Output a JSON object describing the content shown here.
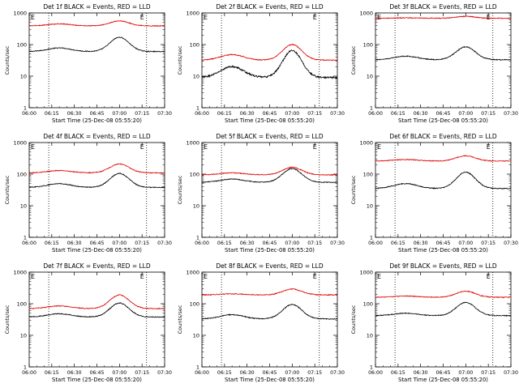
{
  "colors": {
    "events": "#000000",
    "lld": "#e00000",
    "axis": "#000000",
    "background": "#ffffff"
  },
  "x_axis": {
    "label": "Start Time (25-Dec-08 05:55:20)",
    "ticks": [
      "06:00",
      "06:15",
      "06:30",
      "06:45",
      "07:00",
      "07:15",
      "07:30"
    ],
    "range_minutes": [
      0,
      90
    ],
    "marker_label": "E",
    "marker_positions": [
      "06:13",
      "07:18"
    ]
  },
  "y_axis": {
    "label": "Counts/sec",
    "scale": "log",
    "range": [
      1,
      1000
    ],
    "tick_labels": [
      "1",
      "10",
      "100",
      "1000"
    ]
  },
  "chart_data": [
    {
      "type": "line",
      "title": "Det 1f BLACK = Events, RED = LLD",
      "series": [
        {
          "values": {
            "base": 60,
            "peak": 170,
            "bump": 78
          }
        },
        {
          "values": {
            "base": 390,
            "peak": 560,
            "bump": 450
          }
        }
      ]
    },
    {
      "type": "line",
      "title": "Det 2f BLACK = Events, RED = LLD",
      "series": [
        {
          "values": {
            "base": 9,
            "peak": 65,
            "bump": 20
          }
        },
        {
          "values": {
            "base": 32,
            "peak": 100,
            "bump": 48
          }
        }
      ]
    },
    {
      "type": "line",
      "title": "Det 3f BLACK = Events, RED = LLD",
      "series": [
        {
          "values": {
            "base": 33,
            "peak": 85,
            "bump": 43
          }
        },
        {
          "values": {
            "base": 680,
            "peak": 780,
            "bump": 700
          }
        }
      ]
    },
    {
      "type": "line",
      "title": "Det 4f BLACK = Events, RED = LLD",
      "series": [
        {
          "values": {
            "base": 38,
            "peak": 105,
            "bump": 50
          }
        },
        {
          "values": {
            "base": 110,
            "peak": 210,
            "bump": 130
          }
        }
      ]
    },
    {
      "type": "line",
      "title": "Det 5f BLACK = Events, RED = LLD",
      "series": [
        {
          "values": {
            "base": 55,
            "peak": 150,
            "bump": 70
          }
        },
        {
          "values": {
            "base": 95,
            "peak": 165,
            "bump": 110
          }
        }
      ]
    },
    {
      "type": "line",
      "title": "Det 6f BLACK = Events, RED = LLD",
      "series": [
        {
          "values": {
            "base": 35,
            "peak": 115,
            "bump": 50
          }
        },
        {
          "values": {
            "base": 260,
            "peak": 380,
            "bump": 290
          }
        }
      ]
    },
    {
      "type": "line",
      "title": "Det 7f BLACK = Events, RED = LLD",
      "series": [
        {
          "values": {
            "base": 38,
            "peak": 105,
            "bump": 48
          }
        },
        {
          "values": {
            "base": 70,
            "peak": 190,
            "bump": 85
          }
        }
      ]
    },
    {
      "type": "line",
      "title": "Det 8f BLACK = Events, RED = LLD",
      "series": [
        {
          "values": {
            "base": 33,
            "peak": 95,
            "bump": 45
          }
        },
        {
          "values": {
            "base": 190,
            "peak": 290,
            "bump": 205
          }
        }
      ]
    },
    {
      "type": "line",
      "title": "Det 9f BLACK = Events, RED = LLD",
      "series": [
        {
          "values": {
            "base": 42,
            "peak": 110,
            "bump": 50
          }
        },
        {
          "values": {
            "base": 160,
            "peak": 250,
            "bump": 175
          }
        }
      ]
    }
  ]
}
